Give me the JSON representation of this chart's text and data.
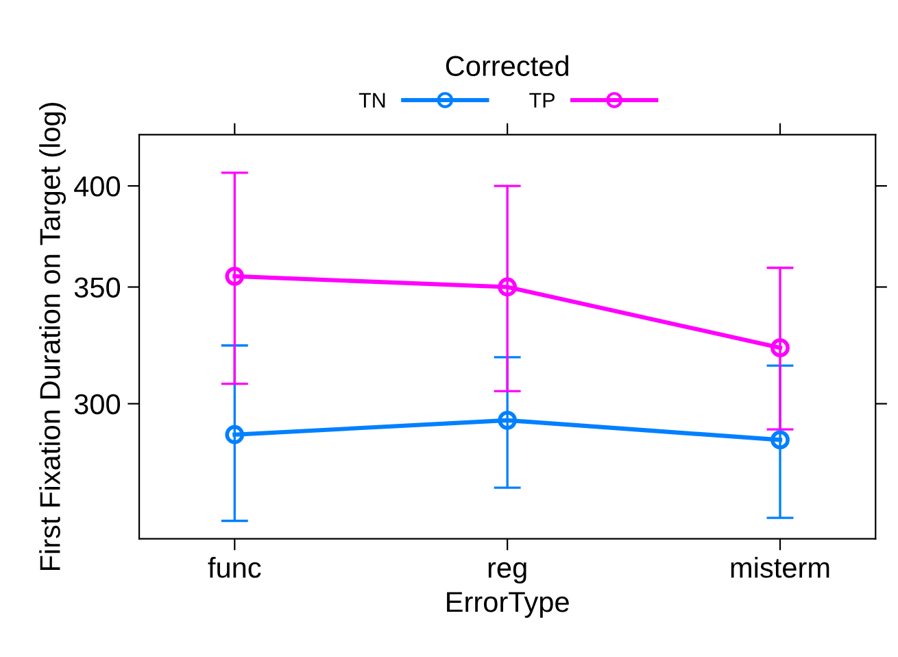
{
  "chart_data": {
    "type": "line",
    "xlabel": "ErrorType",
    "ylabel": "First Fixation Duration on Target (log)",
    "legend_title": "Corrected",
    "categories": [
      "func",
      "reg",
      "misterm"
    ],
    "series": [
      {
        "name": "TN",
        "color": "#0080ff",
        "values": [
          288,
          293.5,
          286
        ],
        "errors": [
          [
            257,
            324
          ],
          [
            268.5,
            319
          ],
          [
            258,
            315.5
          ]
        ]
      },
      {
        "name": "TP",
        "color": "#ff00ff",
        "values": [
          355,
          350,
          323
        ],
        "errors": [
          [
            308,
            407
          ],
          [
            305,
            400
          ],
          [
            290,
            359
          ]
        ]
      }
    ],
    "log": true,
    "ylim": [
      251,
      428
    ],
    "yticks": [
      300,
      350,
      400
    ],
    "marker": "circle",
    "line_style": "solid",
    "legend": "top",
    "grid": false
  }
}
